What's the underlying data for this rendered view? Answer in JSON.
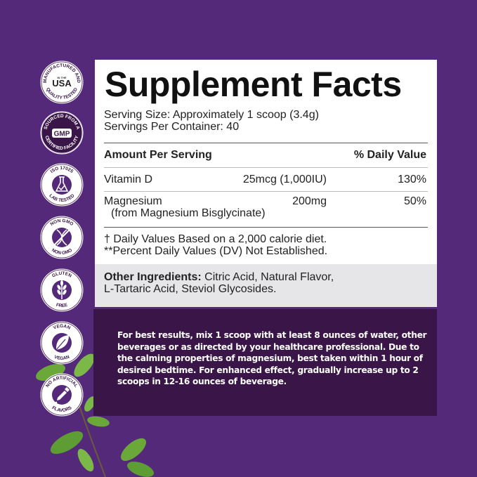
{
  "colors": {
    "background": "#54297a",
    "panel": "#ffffff",
    "band": "#e6e6e8",
    "directions_bg": "#3a1548",
    "badge_purple": "#54297a"
  },
  "badges": [
    {
      "icon": "usa-icon",
      "top": "MANUFACTURED AND",
      "center": "USA",
      "center_small": "IN THE",
      "bottom": "QUALITY TESTED"
    },
    {
      "icon": "gmp-icon",
      "top": "SOURCED FROM A",
      "center": "GMP",
      "bottom": "CERTIFIED FACILITY"
    },
    {
      "icon": "flask-icon",
      "top": "ISO 17025",
      "bottom": "LAB TESTED"
    },
    {
      "icon": "dna-crossed-icon",
      "top": "NON GMO",
      "bottom": "NON GMO"
    },
    {
      "icon": "wheat-icon",
      "top": "GLUTEN",
      "bottom": "FREE"
    },
    {
      "icon": "leaf-icon",
      "top": "VEGAN",
      "bottom": "VEGAN"
    },
    {
      "icon": "dropper-icon",
      "top": "NO ARTIFICIAL",
      "bottom": "FLAVORS"
    }
  ],
  "facts": {
    "title": "Supplement Facts",
    "serving_size": "Serving Size: Approximately 1 scoop (3.4g)",
    "servings_per_container": "Servings Per Container: 40",
    "header_amount": "Amount Per Serving",
    "header_dv": "% Daily Value",
    "rows": [
      {
        "name": "Vitamin D",
        "amount": "25mcg (1,000IU)",
        "dv": "130%"
      },
      {
        "name": "Magnesium",
        "sub": "(from Magnesium Bisglycinate)",
        "amount": "200mg",
        "dv": "50%"
      }
    ],
    "footnote1": "† Daily Values Based on a 2,000 calorie diet.",
    "footnote2": "**Percent Daily Values (DV) Not Established.",
    "other_label": "Other Ingredients:",
    "other_line1": " Citric Acid, Natural Flavor,",
    "other_line2": "L-Tartaric Acid, Steviol Glycosides."
  },
  "directions": "For best results, mix 1 scoop with at least 8 ounces of water, other beverages or as directed by your healthcare professional. Due to the calming properties of magnesium, best taken within 1 hour of desired bedtime. For enhanced effect, gradually increase up to 2 scoops in 12-16 ounces of beverage."
}
